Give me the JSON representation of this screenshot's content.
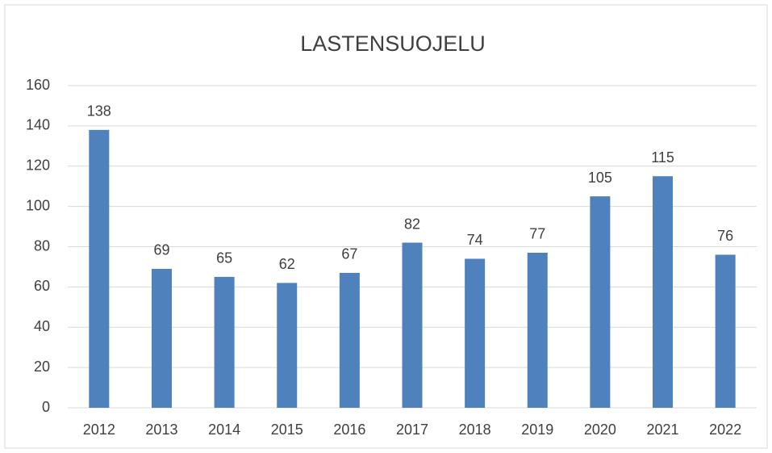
{
  "chart_data": {
    "type": "bar",
    "title": "LASTENSUOJELU",
    "categories": [
      "2012",
      "2013",
      "2014",
      "2015",
      "2016",
      "2017",
      "2018",
      "2019",
      "2020",
      "2021",
      "2022"
    ],
    "values": [
      138,
      69,
      65,
      62,
      67,
      82,
      74,
      77,
      105,
      115,
      76
    ],
    "color": "#4f81bd",
    "ylim": [
      0,
      160
    ],
    "yticks": [
      0,
      20,
      40,
      60,
      80,
      100,
      120,
      140,
      160
    ],
    "grid": true
  }
}
